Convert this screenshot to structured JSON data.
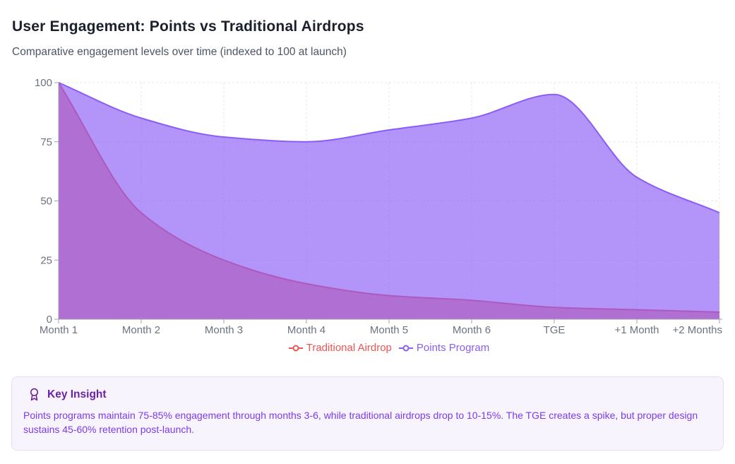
{
  "header": {
    "title": "User Engagement: Points vs Traditional Airdrops",
    "subtitle": "Comparative engagement levels over time (indexed to 100 at launch)"
  },
  "chart_data": {
    "type": "area",
    "title": "User Engagement: Points vs Traditional Airdrops",
    "categories": [
      "Month 1",
      "Month 2",
      "Month 3",
      "Month 4",
      "Month 5",
      "Month 6",
      "TGE",
      "+1 Month",
      "+2 Months"
    ],
    "series": [
      {
        "name": "Traditional Airdrop",
        "color": "#ef5350",
        "fill_opacity": 0.62,
        "values": [
          100,
          45,
          25,
          15,
          10,
          8,
          5,
          4,
          3
        ]
      },
      {
        "name": "Points Program",
        "color": "#8b5cf6",
        "fill_opacity": 0.65,
        "values": [
          100,
          85,
          77,
          75,
          80,
          85,
          95,
          60,
          45
        ]
      }
    ],
    "xlabel": "",
    "ylabel": "",
    "ylim": [
      0,
      100
    ],
    "y_ticks": [
      0,
      25,
      50,
      75,
      100
    ],
    "grid": "dashed",
    "grid_color": "#e5e7eb",
    "axis_color": "#9ca3af",
    "tick_text_color": "#6b7280",
    "legend_position": "bottom"
  },
  "insight": {
    "title": "Key Insight",
    "icon": "award-icon",
    "body": "Points programs maintain 75-85% engagement through months 3-6, while traditional airdrops drop to 10-15%. The TGE creates a spike, but proper design sustains 45-60% retention post-launch.",
    "colors": {
      "background": "#f7f4fd",
      "border": "#e4dcf5",
      "title": "#6b21a8",
      "text": "#7c3aed"
    }
  }
}
